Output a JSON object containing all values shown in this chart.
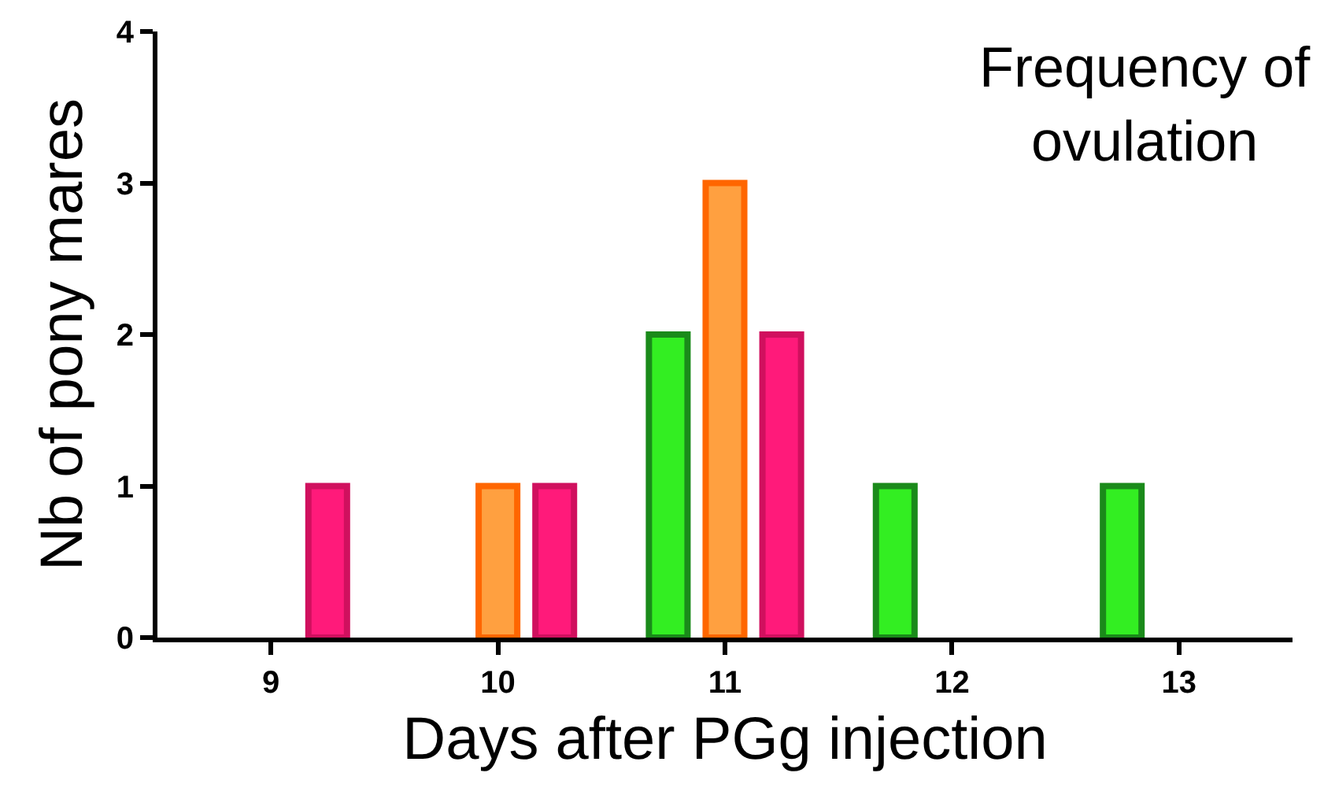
{
  "chart_data": {
    "type": "bar",
    "title": "Frequency of ovulation",
    "xlabel": "Days after PGg injection",
    "ylabel": "Nb of pony mares",
    "series": [
      {
        "color": "#ff1a7a",
        "x": [
          9.25,
          10.25,
          11.25
        ],
        "values": [
          1,
          1,
          2
        ]
      },
      {
        "color": "#ffa040",
        "x": [
          10,
          11
        ],
        "values": [
          1,
          3
        ]
      },
      {
        "color": "#33ee22",
        "x": [
          10.75,
          11.75,
          12.75
        ],
        "values": [
          2,
          1,
          1
        ]
      }
    ],
    "xlim": [
      8.5,
      13.5
    ],
    "xticks": [
      9,
      10,
      11,
      12,
      13
    ],
    "ylim": [
      0,
      4
    ],
    "yticks": [
      0,
      1,
      2,
      3,
      4
    ],
    "grid": false
  }
}
